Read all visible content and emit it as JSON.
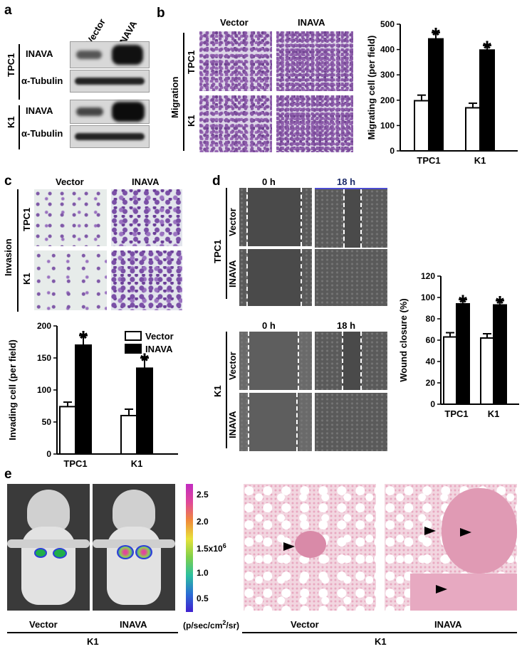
{
  "panels": {
    "a": {
      "label": "a",
      "columns": [
        "Vector",
        "INAVA"
      ],
      "groups": [
        "TPC1",
        "K1"
      ],
      "rows": [
        "INAVA",
        "α-Tubulin",
        "INAVA",
        "α-Tubulin"
      ]
    },
    "b": {
      "label": "b",
      "columns": [
        "Vector",
        "INAVA"
      ],
      "side_label": "Migration",
      "rows": [
        "TPC1",
        "K1"
      ]
    },
    "c": {
      "label": "c",
      "columns": [
        "Vector",
        "INAVA"
      ],
      "side_label": "Invasion",
      "rows": [
        "TPC1",
        "K1"
      ]
    },
    "d": {
      "label": "d",
      "times": [
        "0 h",
        "18 h",
        "0 h",
        "18 h"
      ],
      "groups": [
        "TPC1",
        "K1"
      ],
      "rows": [
        "Vector",
        "INAVA",
        "Vector",
        "INAVA"
      ]
    },
    "e": {
      "label": "e",
      "scale_ticks": [
        "2.5",
        "2.0",
        "1.5x10",
        "1.0",
        "0.5"
      ],
      "scale_exp": "6",
      "scale_unit_pre": "(p/sec/cm",
      "scale_unit_exp": "2",
      "scale_unit_post": "/sr)",
      "mouse_labels": [
        "Vector",
        "INAVA"
      ],
      "histo_labels": [
        "Vector",
        "INAVA"
      ],
      "group_left": "K1",
      "group_right": "K1"
    }
  },
  "chart_data": [
    {
      "id": "b",
      "type": "bar",
      "categories": [
        "TPC1",
        "K1"
      ],
      "series": [
        {
          "name": "Vector",
          "values": [
            198,
            170
          ],
          "errors": [
            22,
            18
          ],
          "color": "#ffffff"
        },
        {
          "name": "INAVA",
          "values": [
            442,
            398
          ],
          "errors": [
            25,
            18
          ],
          "color": "#000000"
        }
      ],
      "significance": [
        "*",
        "*"
      ],
      "ylabel": "Migrating cell (per field)",
      "ylim": [
        0,
        500
      ],
      "yticks": [
        0,
        100,
        200,
        300,
        400,
        500
      ],
      "legend": "top-right"
    },
    {
      "id": "c",
      "type": "bar",
      "categories": [
        "TPC1",
        "K1"
      ],
      "series": [
        {
          "name": "Vector",
          "values": [
            74,
            60
          ],
          "errors": [
            7,
            10
          ],
          "color": "#ffffff"
        },
        {
          "name": "INAVA",
          "values": [
            170,
            134
          ],
          "errors": [
            15,
            16
          ],
          "color": "#000000"
        }
      ],
      "significance": [
        "*",
        "*"
      ],
      "ylabel": "Invading cell (per field)",
      "ylim": [
        0,
        200
      ],
      "yticks": [
        0,
        50,
        100,
        150,
        200
      ],
      "legend": "top-right"
    },
    {
      "id": "d",
      "type": "bar",
      "categories": [
        "TPC1",
        "K1"
      ],
      "series": [
        {
          "name": "Vector",
          "values": [
            63,
            62
          ],
          "errors": [
            4,
            4
          ],
          "color": "#ffffff"
        },
        {
          "name": "INAVA",
          "values": [
            94,
            93
          ],
          "errors": [
            4,
            4
          ],
          "color": "#000000"
        }
      ],
      "significance": [
        "*",
        "*"
      ],
      "ylabel": "Wound closure (%)",
      "ylim": [
        0,
        120
      ],
      "yticks": [
        0,
        20,
        40,
        60,
        80,
        100,
        120
      ],
      "legend": "top"
    }
  ]
}
